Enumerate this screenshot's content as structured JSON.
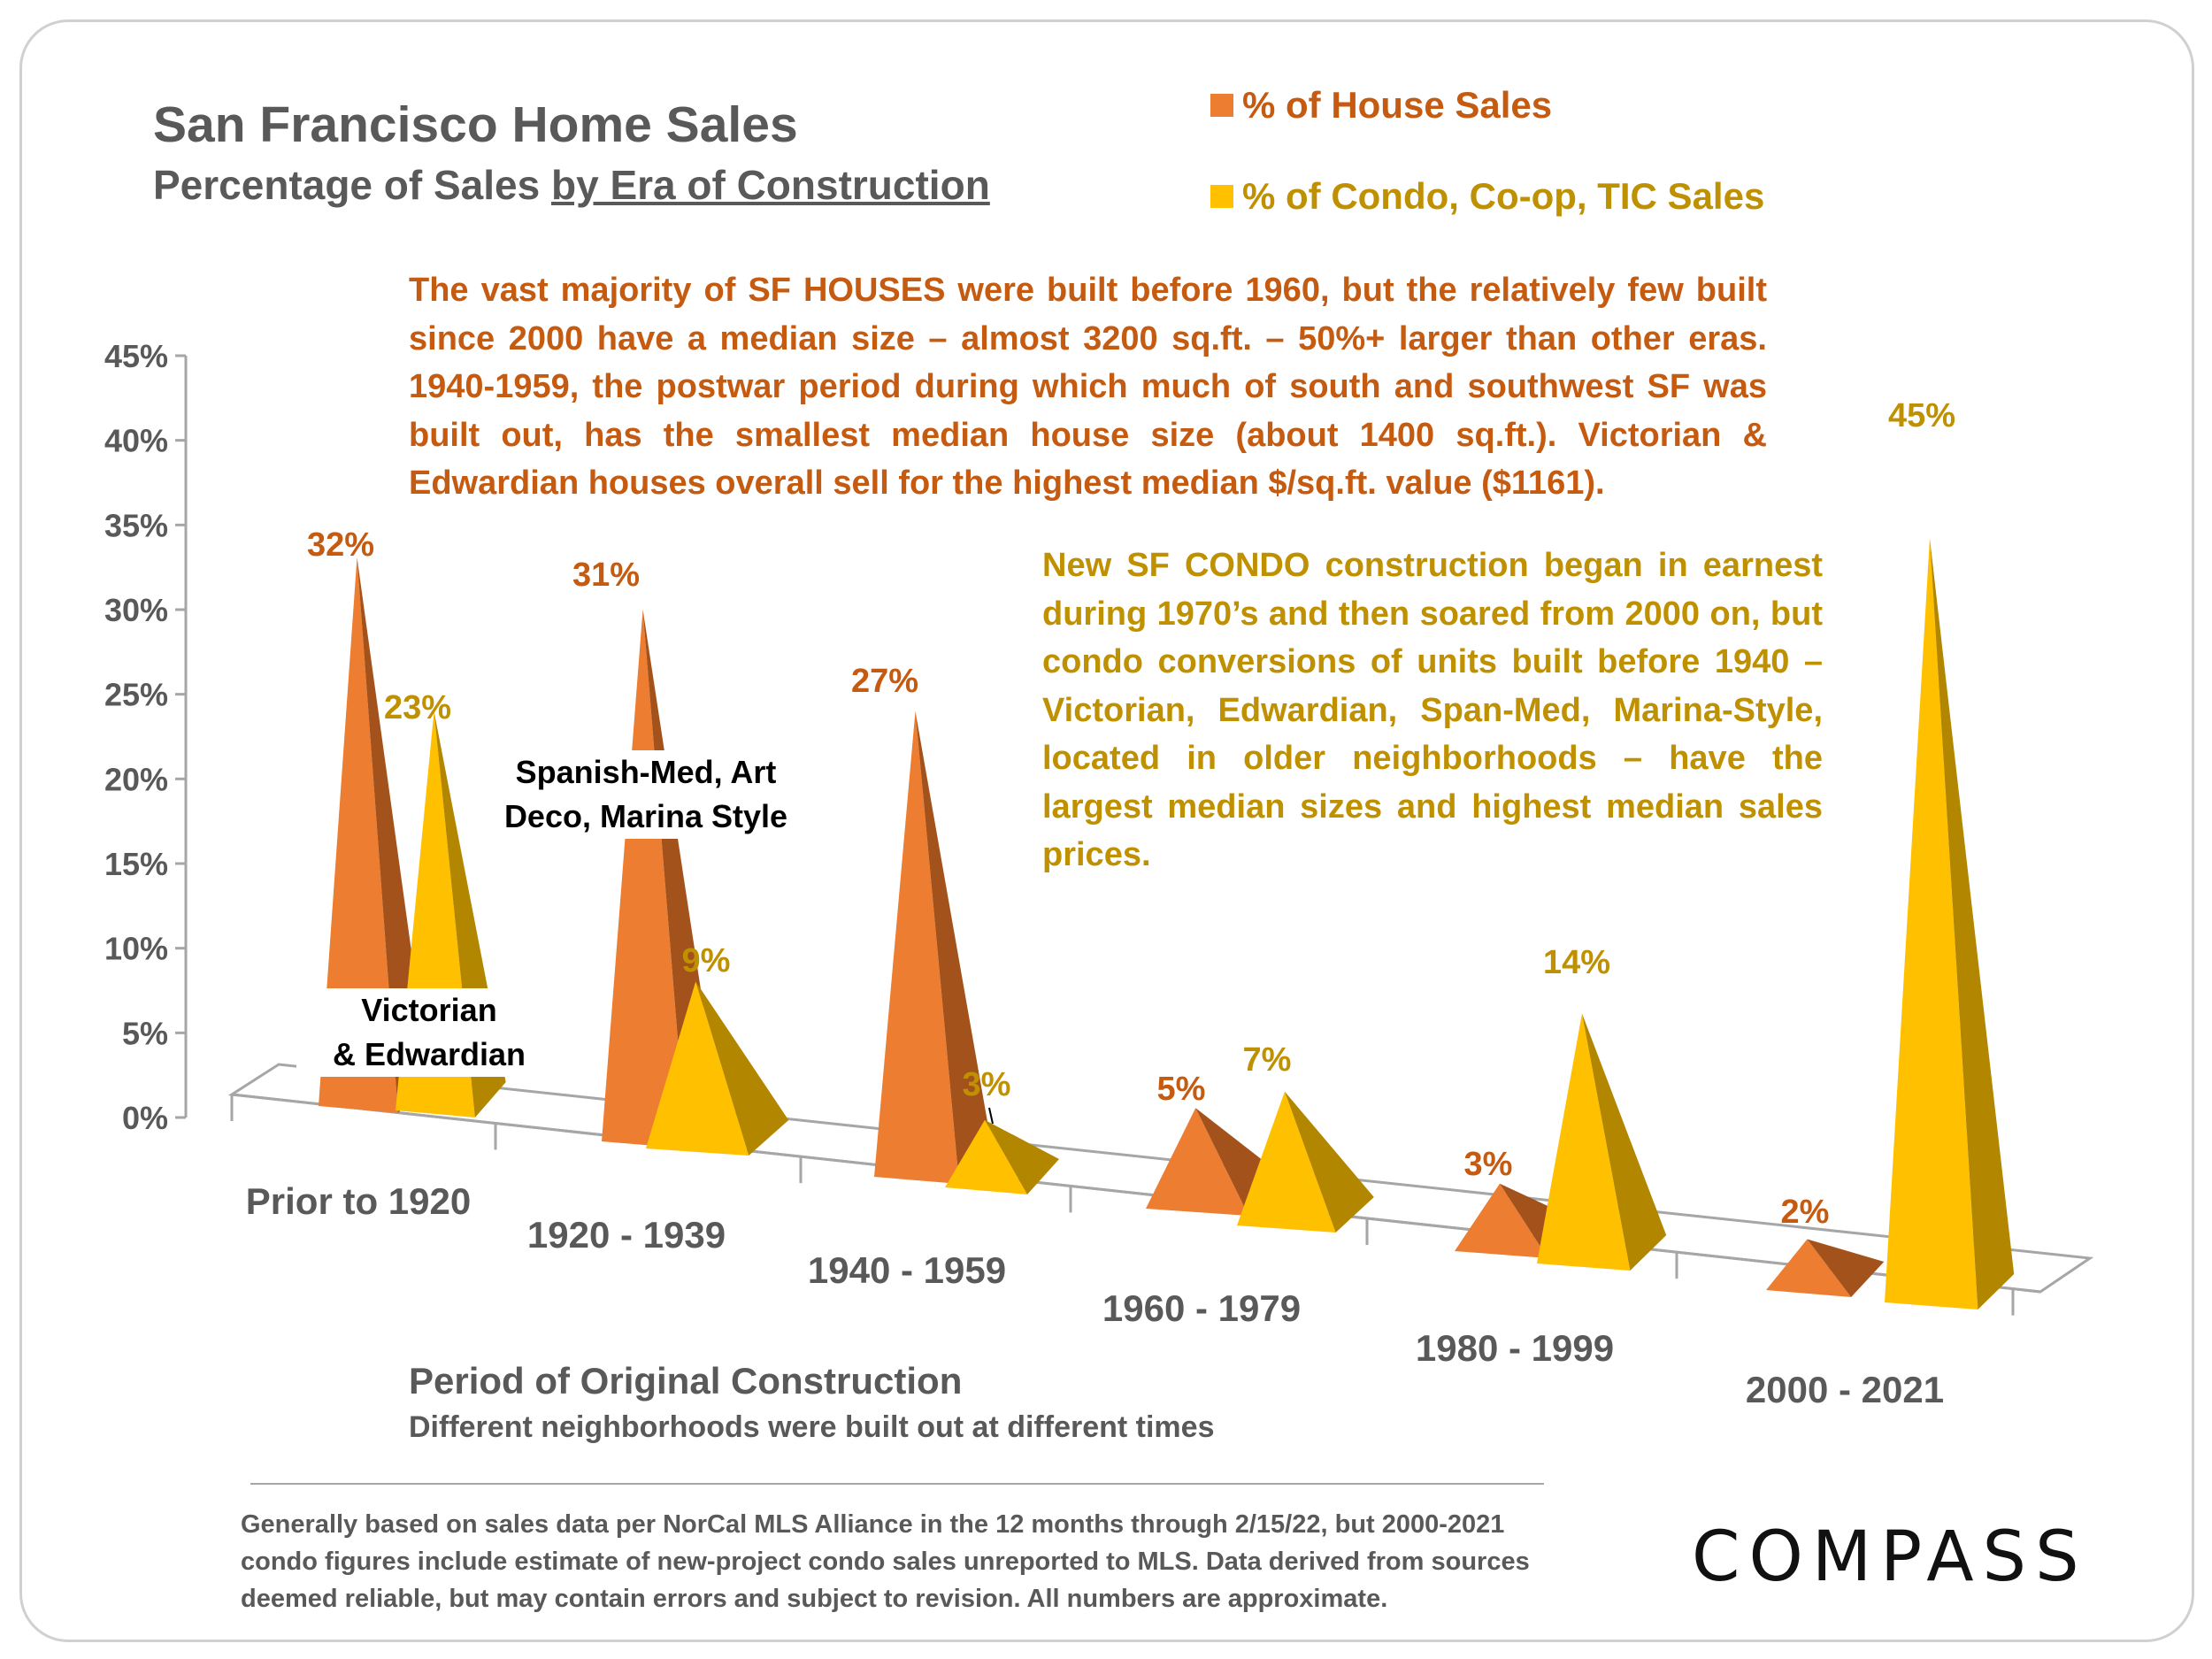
{
  "header": {
    "title": "San Francisco Home Sales",
    "subtitle_prefix": "Percentage of Sales ",
    "subtitle_underlined": "by Era of Construction"
  },
  "legend": {
    "house": "% of House Sales",
    "condo": "% of Condo, Co-op, TIC Sales"
  },
  "notes": {
    "house": "The vast majority of SF HOUSES were built before 1960, but the relatively few built since 2000 have a median size – almost 3200 sq.ft. – 50%+ larger than other eras. 1940-1959, the postwar period during which much of south and southwest SF was built out, has the smallest median house size (about 1400 sq.ft.). Victorian & Edwardian houses overall sell for the highest median $/sq.ft. value ($1161).",
    "condo": "New SF CONDO construction began in earnest during 1970’s and then soared from 2000 on, but condo conversions of units built before 1940 – Victorian, Edwardian, Span-Med, Marina-Style, located in older neighborhoods – have the largest median sizes and highest median sales prices."
  },
  "era_annotations": {
    "victorian_line1": "Victorian",
    "victorian_line2": "& Edwardian",
    "spanish_line1": "Spanish-Med, Art",
    "spanish_line2": "Deco, Marina Style"
  },
  "x_axis": {
    "title": "Period of Original Construction",
    "subtitle": "Different neighborhoods were built out at different times"
  },
  "footer": {
    "text": "Generally based on sales data per NorCal MLS Alliance in the 12 months through 2/15/22, but 2000-2021 condo figures include estimate of new-project condo sales unreported to MLS.  Data derived from sources deemed reliable, but may contain errors and subject to revision. All numbers are approximate.",
    "brand": "COMPASS"
  },
  "colors": {
    "house": "#ed7d31",
    "house_dark": "#a3521c",
    "house_text": "#c55a11",
    "condo": "#ffc000",
    "condo_dark": "#b38600",
    "condo_text": "#bf9000",
    "axis_text": "#595959"
  },
  "chart_data": {
    "type": "bar",
    "title": "San Francisco Home Sales",
    "subtitle": "Percentage of Sales by Era of Construction",
    "xlabel": "Period of Original Construction",
    "ylabel": "",
    "ylim": [
      0,
      45
    ],
    "y_ticks": [
      "0%",
      "5%",
      "10%",
      "15%",
      "20%",
      "25%",
      "30%",
      "35%",
      "40%",
      "45%"
    ],
    "y_tick_values": [
      0,
      5,
      10,
      15,
      20,
      25,
      30,
      35,
      40,
      45
    ],
    "categories": [
      "Prior to 1920",
      "1920 - 1939",
      "1940 - 1959",
      "1960 - 1979",
      "1980 - 1999",
      "2000 - 2021"
    ],
    "series": [
      {
        "name": "% of House Sales",
        "values": [
          32,
          31,
          27,
          5,
          3,
          2
        ],
        "labels": [
          "32%",
          "31%",
          "27%",
          "5%",
          "3%",
          "2%"
        ]
      },
      {
        "name": "% of Condo, Co-op, TIC Sales",
        "values": [
          23,
          9,
          3,
          7,
          14,
          45
        ],
        "labels": [
          "23%",
          "9%",
          "3%",
          "7%",
          "14%",
          "45%"
        ]
      }
    ]
  }
}
